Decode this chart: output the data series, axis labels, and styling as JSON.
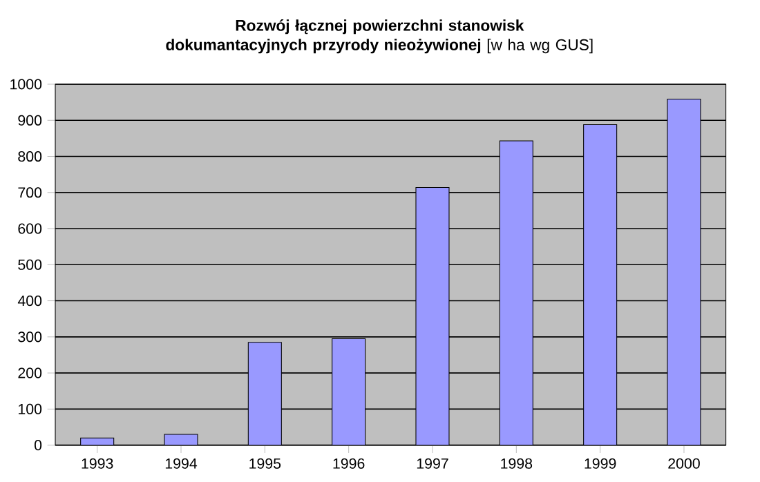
{
  "chart_data": {
    "type": "bar",
    "title": "**Rozwój łącznej powierzchni stanowisk dokumantacyjnych przyrody nieożywionej** [w ha wg GUS]",
    "categories": [
      "1993",
      "1994",
      "1995",
      "1996",
      "1997",
      "1998",
      "1999",
      "2000"
    ],
    "values": [
      20,
      30,
      285,
      295,
      714,
      843,
      888,
      959
    ],
    "color": "#9999ff",
    "ylim": [
      0,
      1000
    ],
    "yticks": [
      0,
      100,
      200,
      300,
      400,
      500,
      600,
      700,
      800,
      900,
      1000
    ],
    "grid": "y"
  }
}
